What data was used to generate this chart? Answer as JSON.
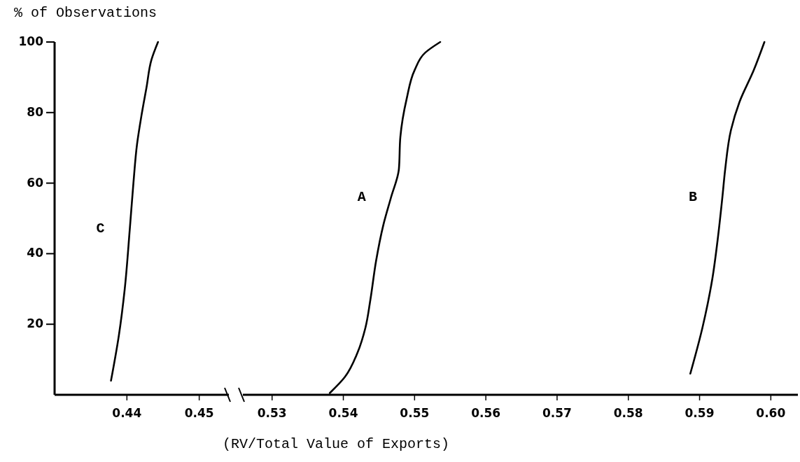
{
  "chart_data": [
    {
      "type": "line",
      "ylabel": "% of Observations",
      "xlim": [
        0.43,
        0.4541
      ],
      "ylim": [
        0,
        100
      ],
      "xticks": [
        0.44,
        0.45
      ],
      "yticks": [
        20,
        40,
        60,
        80,
        100
      ],
      "series": [
        {
          "name": "C",
          "color": "#000000",
          "x": [
            0.4378,
            0.4389,
            0.4397,
            0.4404,
            0.4409,
            0.4414,
            0.442,
            0.4427,
            0.4434,
            0.4443
          ],
          "values": [
            4,
            17,
            30,
            47,
            60,
            71,
            79,
            87,
            95,
            100
          ]
        }
      ]
    },
    {
      "type": "line",
      "xlabel": "(RV/Total Value of Exports)",
      "xlim": [
        0.5259,
        0.6038
      ],
      "ylim": [
        0,
        100
      ],
      "xticks": [
        0.53,
        0.54,
        0.55,
        0.56,
        0.57,
        0.58,
        0.59,
        {
          "value": 0.6,
          "label": "0.60"
        }
      ],
      "tick_labels": "x",
      "series": [
        {
          "name": "A",
          "color": "#000000",
          "x": [
            0.5381,
            0.5402,
            0.542,
            0.5431,
            0.5438,
            0.5446,
            0.5456,
            0.5467,
            0.5478,
            0.548,
            0.5489,
            0.55,
            0.5515,
            0.5536
          ],
          "values": [
            0.5,
            5,
            12,
            19,
            27,
            38,
            48,
            56,
            64,
            73,
            84,
            92,
            97,
            100
          ]
        },
        {
          "name": "B",
          "color": "#000000",
          "x": [
            0.5887,
            0.5904,
            0.5918,
            0.5926,
            0.5932,
            0.5936,
            0.5944,
            0.5956,
            0.5976,
            0.5991
          ],
          "values": [
            6,
            19,
            33,
            45,
            56,
            64,
            75,
            83,
            92,
            100
          ]
        }
      ]
    }
  ]
}
